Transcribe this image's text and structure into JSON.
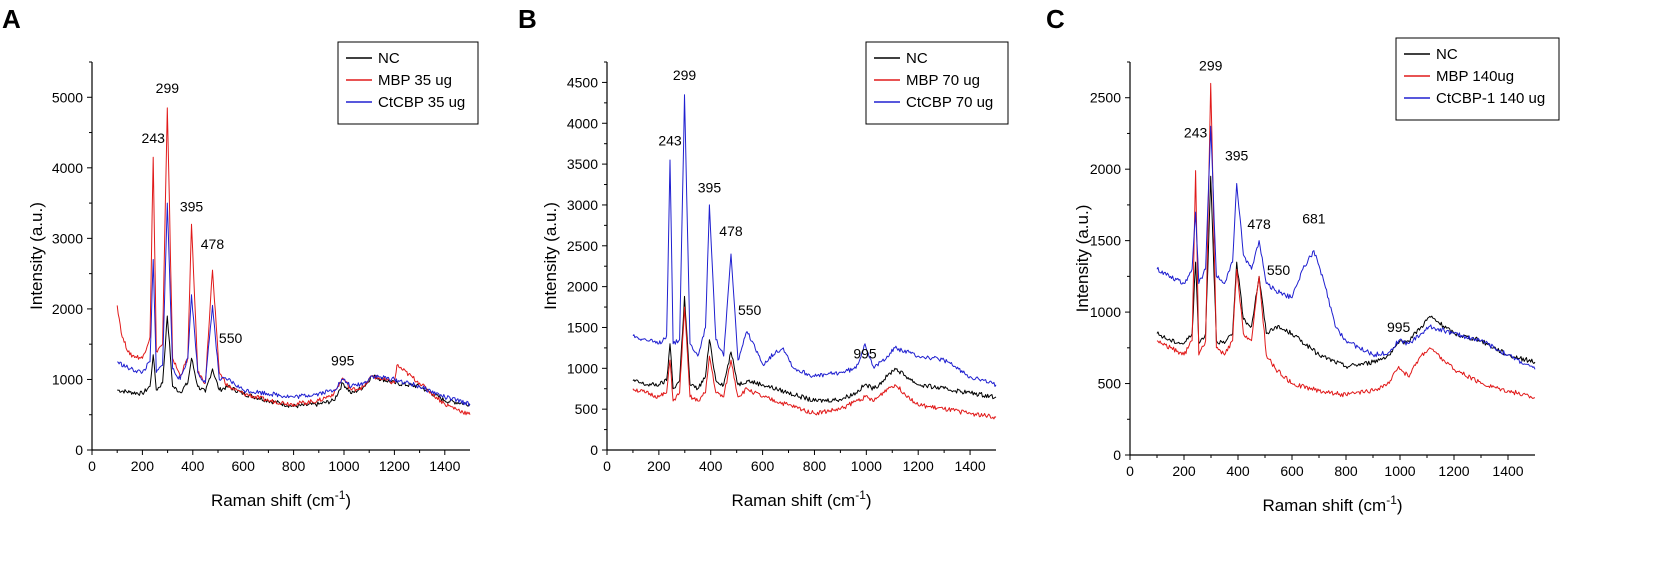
{
  "colors": {
    "NC": "#000000",
    "MBP": "#e11a1a",
    "CtCBP": "#2020d0"
  },
  "chart_data": [
    {
      "panel": "A",
      "type": "line",
      "xlabel": "Raman shift (cm",
      "xlabel_sup": "-1",
      "xlabel_end": ")",
      "ylabel": "Intensity (a.u.)",
      "xlim": [
        0,
        1500
      ],
      "ylim": [
        0,
        5500
      ],
      "xticks": [
        0,
        200,
        400,
        600,
        800,
        1000,
        1200,
        1400
      ],
      "yticks": [
        0,
        1000,
        2000,
        3000,
        4000,
        5000
      ],
      "legend": [
        "NC",
        "MBP 35 ug",
        "CtCBP 35 ug"
      ],
      "peak_labels": [
        {
          "text": "243",
          "x": 243,
          "y": 4350
        },
        {
          "text": "299",
          "x": 299,
          "y": 5060
        },
        {
          "text": "395",
          "x": 395,
          "y": 3380
        },
        {
          "text": "478",
          "x": 478,
          "y": 2850
        },
        {
          "text": "550",
          "x": 550,
          "y": 1520
        },
        {
          "text": "995",
          "x": 995,
          "y": 1200
        }
      ],
      "series": [
        {
          "name": "NC",
          "key": "NC",
          "x": [
            100,
            150,
            200,
            230,
            243,
            255,
            280,
            299,
            320,
            350,
            380,
            395,
            420,
            450,
            478,
            505,
            540,
            600,
            700,
            800,
            900,
            960,
            995,
            1030,
            1080,
            1110,
            1200,
            1300,
            1400,
            1500
          ],
          "y": [
            850,
            820,
            800,
            900,
            1350,
            850,
            950,
            1900,
            900,
            820,
            950,
            1300,
            900,
            820,
            1150,
            850,
            900,
            800,
            700,
            620,
            650,
            700,
            950,
            800,
            900,
            1050,
            950,
            900,
            700,
            650
          ]
        },
        {
          "name": "MBP 35 ug",
          "key": "MBP",
          "x": [
            100,
            120,
            150,
            200,
            230,
            243,
            255,
            280,
            299,
            320,
            350,
            380,
            395,
            420,
            450,
            478,
            505,
            540,
            600,
            700,
            800,
            900,
            960,
            995,
            1030,
            1080,
            1110,
            1200,
            1210,
            1300,
            1400,
            1500
          ],
          "y": [
            2050,
            1600,
            1350,
            1300,
            1600,
            4150,
            1400,
            1500,
            4850,
            1300,
            1050,
            1300,
            3200,
            1100,
            950,
            2550,
            1100,
            900,
            800,
            700,
            650,
            700,
            800,
            1020,
            850,
            900,
            1050,
            950,
            1200,
            950,
            650,
            500
          ]
        },
        {
          "name": "CtCBP 35 ug",
          "key": "CtCBP",
          "x": [
            100,
            150,
            200,
            230,
            243,
            255,
            280,
            299,
            320,
            350,
            380,
            395,
            420,
            450,
            478,
            505,
            540,
            600,
            700,
            800,
            900,
            960,
            995,
            1030,
            1080,
            1110,
            1200,
            1300,
            1400,
            1500
          ],
          "y": [
            1250,
            1150,
            1100,
            1250,
            2700,
            1100,
            1200,
            3500,
            1150,
            1000,
            1300,
            2200,
            1100,
            950,
            2050,
            1000,
            1000,
            850,
            800,
            750,
            800,
            850,
            1000,
            900,
            950,
            1050,
            1000,
            900,
            750,
            650
          ]
        }
      ]
    },
    {
      "panel": "B",
      "type": "line",
      "xlabel": "Raman shift (cm",
      "xlabel_sup": "-1",
      "xlabel_end": ")",
      "ylabel": "Intensity (a.u.)",
      "xlim": [
        0,
        1500
      ],
      "ylim": [
        0,
        4750
      ],
      "xticks": [
        0,
        200,
        400,
        600,
        800,
        1000,
        1200,
        1400
      ],
      "yticks": [
        0,
        500,
        1000,
        1500,
        2000,
        2500,
        3000,
        3500,
        4000,
        4500
      ],
      "legend": [
        "NC",
        "MBP 70 ug",
        "CtCBP 70 ug"
      ],
      "peak_labels": [
        {
          "text": "243",
          "x": 243,
          "y": 3730
        },
        {
          "text": "299",
          "x": 299,
          "y": 4530
        },
        {
          "text": "395",
          "x": 395,
          "y": 3150
        },
        {
          "text": "478",
          "x": 478,
          "y": 2620
        },
        {
          "text": "550",
          "x": 550,
          "y": 1650
        },
        {
          "text": "995",
          "x": 995,
          "y": 1120
        }
      ],
      "series": [
        {
          "name": "NC",
          "key": "NC",
          "x": [
            100,
            150,
            200,
            230,
            243,
            255,
            280,
            299,
            320,
            350,
            380,
            395,
            420,
            450,
            478,
            505,
            540,
            600,
            700,
            800,
            900,
            960,
            995,
            1030,
            1080,
            1110,
            1200,
            1300,
            1400,
            1500
          ],
          "y": [
            850,
            800,
            800,
            850,
            1300,
            750,
            850,
            1880,
            800,
            750,
            900,
            1350,
            850,
            800,
            1200,
            800,
            850,
            800,
            700,
            600,
            620,
            700,
            800,
            750,
            900,
            1000,
            800,
            750,
            700,
            650
          ]
        },
        {
          "name": "MBP 70 ug",
          "key": "MBP",
          "x": [
            100,
            150,
            200,
            230,
            243,
            255,
            280,
            299,
            320,
            350,
            380,
            395,
            420,
            450,
            478,
            505,
            540,
            600,
            700,
            800,
            900,
            960,
            995,
            1030,
            1080,
            1110,
            1200,
            1300,
            1400,
            1500
          ],
          "y": [
            750,
            700,
            650,
            700,
            1100,
            600,
            700,
            1750,
            650,
            600,
            700,
            1150,
            700,
            650,
            1100,
            650,
            750,
            650,
            550,
            450,
            500,
            600,
            650,
            600,
            750,
            800,
            550,
            500,
            450,
            400
          ]
        },
        {
          "name": "CtCBP 70 ug",
          "key": "CtCBP",
          "x": [
            100,
            150,
            200,
            230,
            243,
            255,
            280,
            299,
            320,
            350,
            380,
            395,
            420,
            450,
            478,
            505,
            540,
            600,
            650,
            680,
            720,
            800,
            900,
            960,
            995,
            1030,
            1080,
            1110,
            1200,
            1300,
            1400,
            1500
          ],
          "y": [
            1400,
            1350,
            1300,
            1400,
            3550,
            1300,
            1350,
            4350,
            1300,
            1150,
            1500,
            3000,
            1350,
            1150,
            2400,
            1100,
            1450,
            1050,
            1200,
            1250,
            1000,
            900,
            950,
            1000,
            1300,
            1000,
            1150,
            1250,
            1150,
            1100,
            900,
            800
          ]
        }
      ]
    },
    {
      "panel": "C",
      "type": "line",
      "xlabel": "Raman shift (cm",
      "xlabel_sup": "-1",
      "xlabel_end": ")",
      "ylabel": "Intensity (a.u.)",
      "xlim": [
        0,
        1500
      ],
      "ylim": [
        0,
        2750
      ],
      "xticks": [
        0,
        200,
        400,
        600,
        800,
        1000,
        1200,
        1400
      ],
      "yticks": [
        0,
        500,
        1000,
        1500,
        2000,
        2500
      ],
      "legend": [
        "NC",
        "MBP 140ug",
        "CtCBP-1 140 ug"
      ],
      "peak_labels": [
        {
          "text": "243",
          "x": 243,
          "y": 2220
        },
        {
          "text": "299",
          "x": 299,
          "y": 2690
        },
        {
          "text": "395",
          "x": 395,
          "y": 2060
        },
        {
          "text": "478",
          "x": 478,
          "y": 1580
        },
        {
          "text": "550",
          "x": 550,
          "y": 1260
        },
        {
          "text": "681",
          "x": 681,
          "y": 1620
        },
        {
          "text": "995",
          "x": 995,
          "y": 860
        }
      ],
      "series": [
        {
          "name": "NC",
          "key": "NC",
          "x": [
            100,
            150,
            200,
            230,
            243,
            255,
            280,
            299,
            320,
            350,
            380,
            395,
            420,
            450,
            478,
            505,
            540,
            600,
            700,
            800,
            900,
            960,
            995,
            1030,
            1080,
            1110,
            1200,
            1300,
            1400,
            1500
          ],
          "y": [
            850,
            800,
            780,
            850,
            1350,
            780,
            850,
            1950,
            800,
            780,
            850,
            1350,
            950,
            900,
            1250,
            850,
            900,
            850,
            700,
            620,
            650,
            700,
            780,
            800,
            900,
            970,
            850,
            800,
            700,
            650
          ]
        },
        {
          "name": "MBP 140ug",
          "key": "MBP",
          "x": [
            100,
            150,
            200,
            230,
            243,
            255,
            280,
            299,
            320,
            350,
            380,
            395,
            420,
            450,
            478,
            505,
            540,
            600,
            700,
            800,
            900,
            960,
            995,
            1030,
            1080,
            1110,
            1200,
            1300,
            1400,
            1500
          ],
          "y": [
            800,
            750,
            700,
            800,
            1990,
            700,
            800,
            2600,
            750,
            700,
            800,
            1300,
            850,
            800,
            1250,
            700,
            600,
            500,
            450,
            420,
            450,
            500,
            620,
            550,
            700,
            750,
            600,
            500,
            450,
            400
          ]
        },
        {
          "name": "CtCBP-1 140 ug",
          "key": "CtCBP",
          "x": [
            100,
            150,
            200,
            230,
            243,
            255,
            280,
            299,
            320,
            350,
            380,
            395,
            420,
            450,
            478,
            505,
            540,
            600,
            640,
            681,
            720,
            760,
            800,
            900,
            960,
            995,
            1030,
            1080,
            1110,
            1200,
            1300,
            1400,
            1500
          ],
          "y": [
            1300,
            1250,
            1200,
            1300,
            1700,
            1200,
            1300,
            2300,
            1250,
            1200,
            1350,
            1900,
            1400,
            1300,
            1500,
            1200,
            1150,
            1100,
            1300,
            1430,
            1200,
            900,
            800,
            700,
            720,
            800,
            780,
            850,
            900,
            850,
            800,
            700,
            600
          ]
        }
      ]
    }
  ]
}
